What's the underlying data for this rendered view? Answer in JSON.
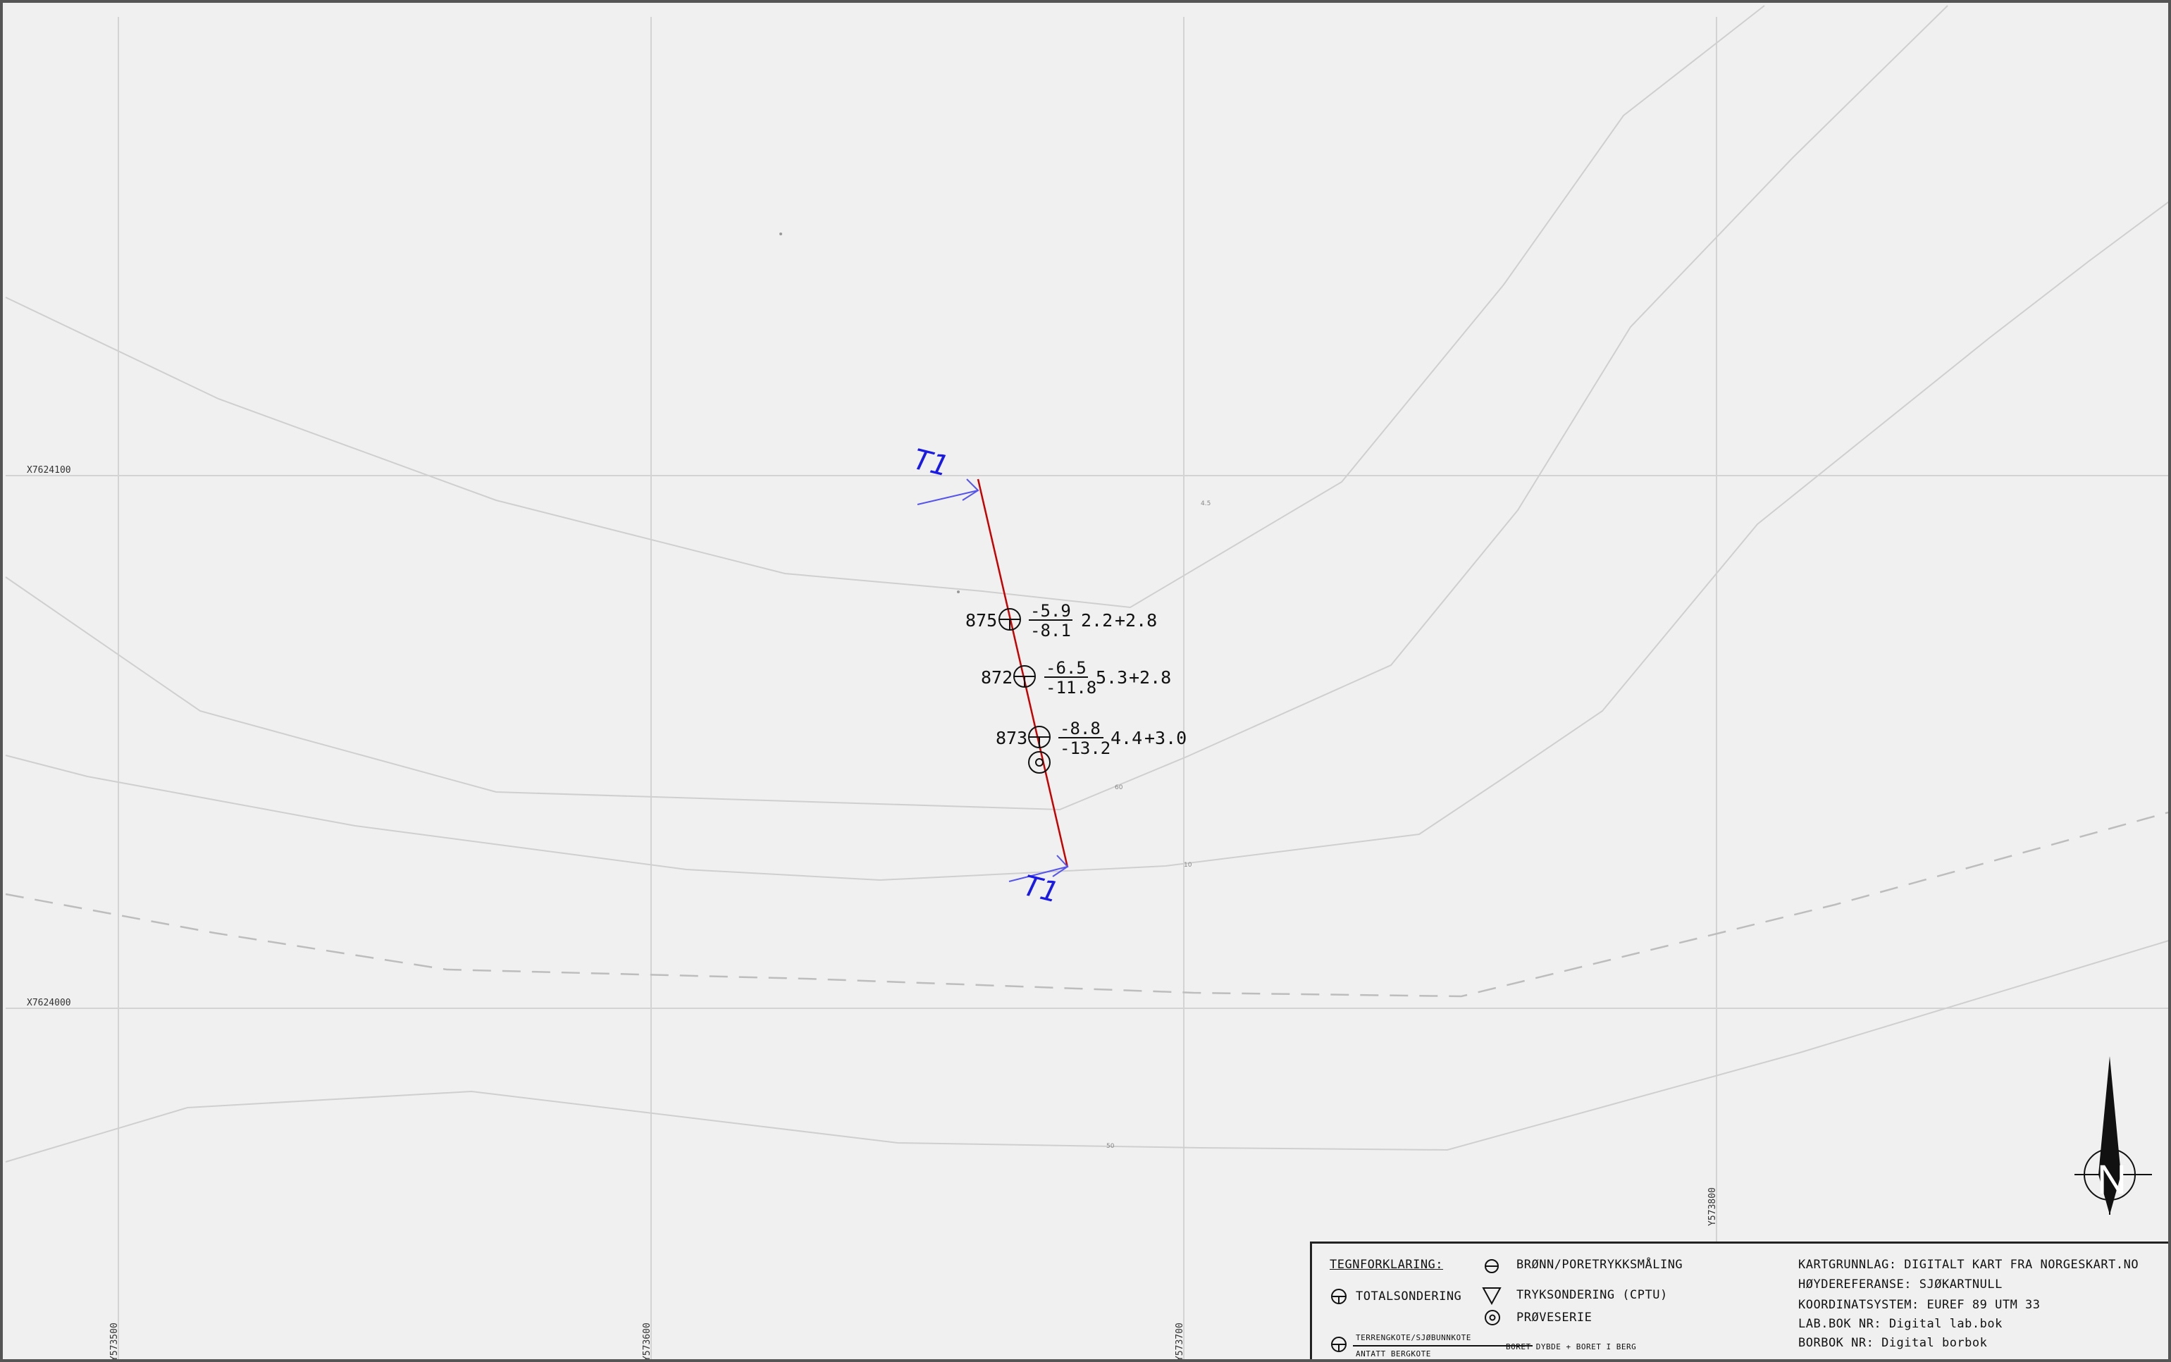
{
  "map": {
    "grid_labels": {
      "x_lines": [
        "X7624100",
        "X7624000"
      ],
      "y_lines": [
        "Y573500",
        "Y573600",
        "Y573700",
        "Y573800"
      ]
    },
    "spot_heights": [
      "4.5",
      "60",
      "10",
      "50"
    ],
    "boreholes": [
      {
        "id": "875",
        "upper": "-5.9",
        "lower": "-8.1",
        "depth": "2.2",
        "rock": "+2.8"
      },
      {
        "id": "872",
        "upper": "-6.5",
        "lower": "-11.8",
        "depth": "5.3",
        "rock": "+2.8"
      },
      {
        "id": "873",
        "upper": "-8.8",
        "lower": "-13.2",
        "depth": "4.4",
        "rock": "+3.0"
      }
    ],
    "section": {
      "label_start": "T1",
      "label_end": "T1",
      "line_color": "#c80000",
      "label_color": "#1a1ae6"
    },
    "north_arrow": {
      "label": "N"
    }
  },
  "legend": {
    "heading": "TEGNFORKLARING:",
    "totalsondering": "TOTALSONDERING",
    "terrain_label": "TERRENGKOTE/SJØBUNNKOTE",
    "bedrock_label": "ANTATT BERGKOTE",
    "depth_label": "BORET DYBDE + BORET I BERG",
    "bronn": "BRØNN/PORETRYKKSMÅLING",
    "cptu": "TRYKSONDERING (CPTU)",
    "proveserie": "PRØVESERIE",
    "info_lines": [
      "KARTGRUNNLAG: DIGITALT KART FRA NORGESKART.NO",
      "HØYDEREFERANSE: SJØKARTNULL",
      "KOORDINATSYSTEM: EUREF 89 UTM 33",
      "LAB.BOK NR: Digital lab.bok",
      "BORBOK NR: Digital borbok"
    ]
  }
}
